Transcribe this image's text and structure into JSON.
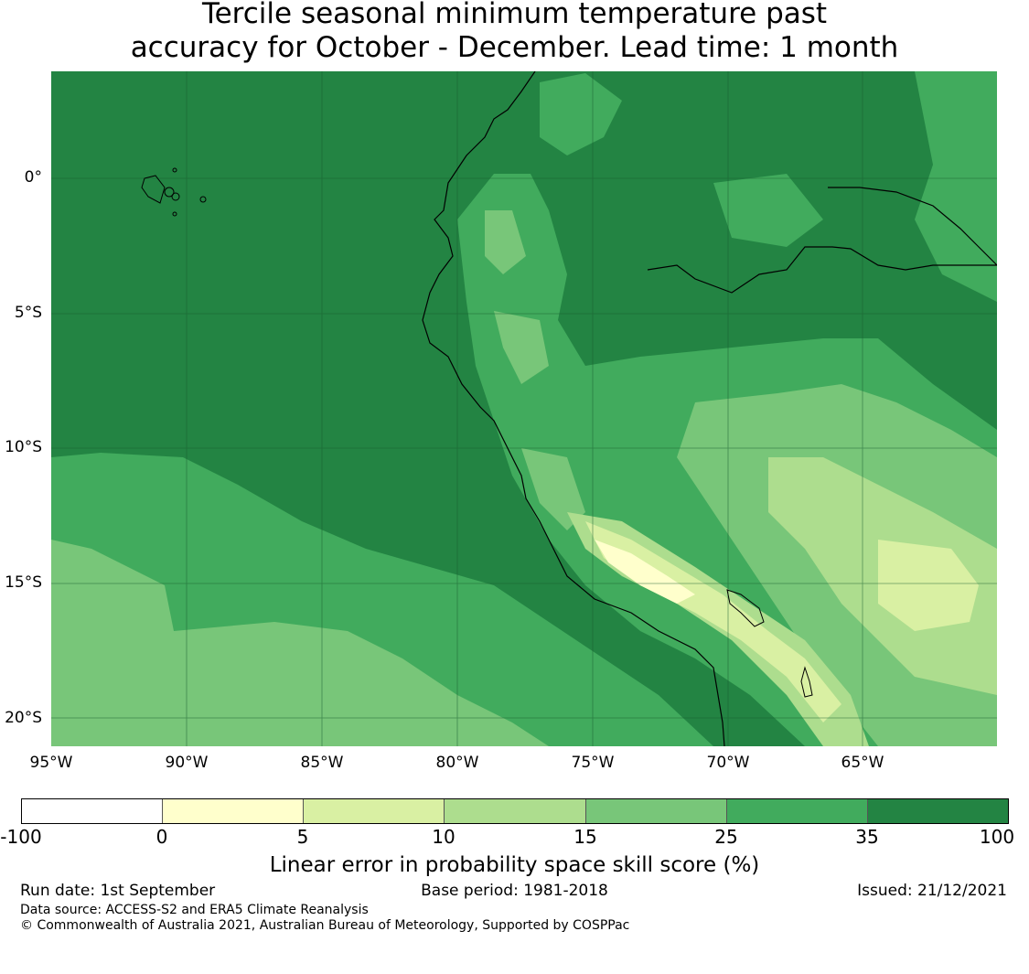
{
  "title": {
    "line1": "Tercile seasonal minimum temperature past",
    "line2": "accuracy for October - December. Lead time: 1 month"
  },
  "map": {
    "lat_labels": [
      "0°",
      "5°S",
      "10°S",
      "15°S",
      "20°S"
    ],
    "lon_labels": [
      "95°W",
      "90°W",
      "85°W",
      "80°W",
      "75°W",
      "70°W",
      "65°W"
    ],
    "background_color": "#248342"
  },
  "colorbar": {
    "ticks": [
      "-100",
      "0",
      "5",
      "10",
      "15",
      "25",
      "35",
      "100"
    ],
    "colors": [
      "#ffffff",
      "#ffffcc",
      "#d9f0a3",
      "#addd8e",
      "#78c679",
      "#41ab5d",
      "#238443"
    ],
    "label": "Linear error in probability space skill score (%)"
  },
  "footer": {
    "run_date": "Run date: 1st September",
    "base_period": "Base period: 1981-2018",
    "issued": "Issued: 21/12/2021",
    "data_source": "Data source: ACCESS-S2 and ERA5 Climate Reanalysis",
    "copyright": "© Commonwealth of Australia 2021, Australian Bureau of Meteorology, Supported by COSPPac"
  }
}
